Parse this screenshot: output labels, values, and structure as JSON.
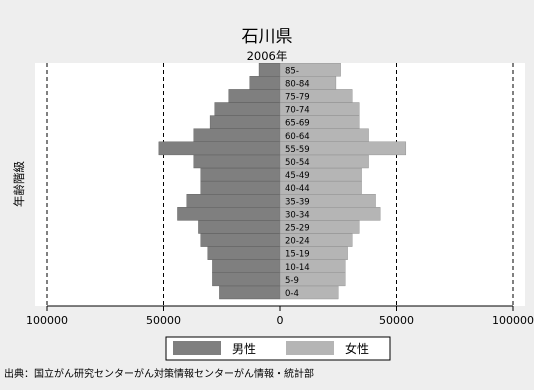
{
  "chart_data": {
    "type": "bar",
    "orientation": "horizontal-population-pyramid",
    "title": "石川県",
    "subtitle": "2006年",
    "ylabel": "年齢階級",
    "xlim": [
      -100000,
      100000
    ],
    "xticks": [
      -100000,
      -50000,
      0,
      50000,
      100000
    ],
    "xtick_labels": [
      "100000",
      "50000",
      "0",
      "50000",
      "100000"
    ],
    "grid": "vertical dashed at tick positions",
    "legend_position": "bottom",
    "categories": [
      "0-4",
      "5-9",
      "10-14",
      "15-19",
      "20-24",
      "25-29",
      "30-34",
      "35-39",
      "40-44",
      "45-49",
      "50-54",
      "55-59",
      "60-64",
      "65-69",
      "70-74",
      "75-79",
      "80-84",
      "85-"
    ],
    "series": [
      {
        "name": "男性",
        "color": "#7f7f7f",
        "values": [
          26000,
          29000,
          29000,
          31000,
          34000,
          35000,
          44000,
          40000,
          34000,
          34000,
          37000,
          52000,
          37000,
          30000,
          28000,
          22000,
          13000,
          9000
        ]
      },
      {
        "name": "女性",
        "color": "#b5b5b5",
        "values": [
          25000,
          28000,
          28000,
          29000,
          31000,
          34000,
          43000,
          41000,
          35000,
          35000,
          38000,
          54000,
          38000,
          34000,
          34000,
          31000,
          24000,
          26000
        ]
      }
    ]
  },
  "source_text": "出典：国立がん研究センターがん対策情報センターがん情報・統計部"
}
